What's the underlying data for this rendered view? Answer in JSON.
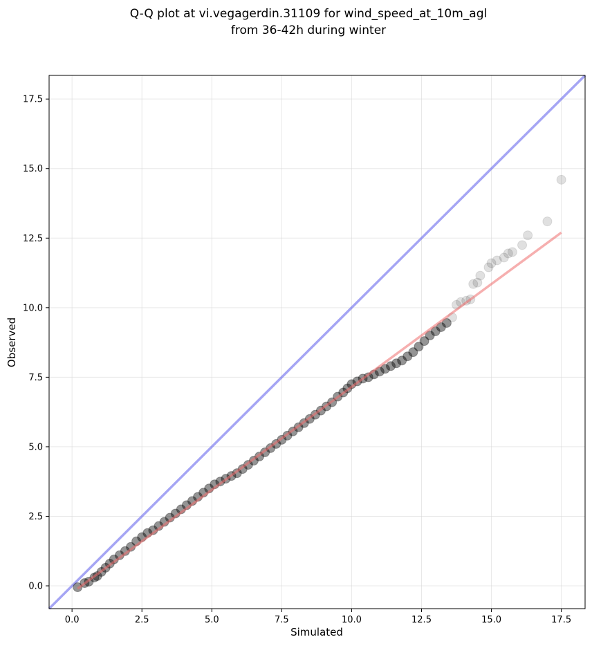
{
  "chart_data": {
    "type": "scatter",
    "title_lines": [
      "Q-Q plot at vi.vegagerdin.31109 for wind_speed_at_10m_agl",
      "from 36-42h during winter"
    ],
    "xlabel": "Simulated",
    "ylabel": "Observed",
    "xlim": [
      -0.82,
      18.35
    ],
    "ylim": [
      -0.82,
      18.35
    ],
    "xticks": [
      "0.0",
      "2.5",
      "5.0",
      "7.5",
      "10.0",
      "12.5",
      "15.0",
      "17.5"
    ],
    "yticks": [
      "0.0",
      "2.5",
      "5.0",
      "7.5",
      "10.0",
      "12.5",
      "15.0",
      "17.5"
    ],
    "grid": true,
    "colors": {
      "points": "#000000",
      "identity_line": "#6a6aee",
      "fit_line": "#ef6e6e",
      "grid": "#d9d9d9"
    },
    "identity_line": [
      [
        -0.82,
        -0.82
      ],
      [
        18.35,
        18.35
      ]
    ],
    "fit_line": [
      [
        0.2,
        -0.1
      ],
      [
        17.5,
        12.7
      ]
    ],
    "points": [
      [
        0.2,
        -0.05
      ],
      [
        0.45,
        0.1
      ],
      [
        0.6,
        0.15
      ],
      [
        0.8,
        0.3
      ],
      [
        0.9,
        0.35
      ],
      [
        1.05,
        0.5
      ],
      [
        1.2,
        0.65
      ],
      [
        1.35,
        0.8
      ],
      [
        1.5,
        0.95
      ],
      [
        1.7,
        1.1
      ],
      [
        1.9,
        1.25
      ],
      [
        2.1,
        1.4
      ],
      [
        2.3,
        1.6
      ],
      [
        2.5,
        1.75
      ],
      [
        2.7,
        1.9
      ],
      [
        2.9,
        2.0
      ],
      [
        3.1,
        2.15
      ],
      [
        3.3,
        2.3
      ],
      [
        3.5,
        2.45
      ],
      [
        3.7,
        2.6
      ],
      [
        3.9,
        2.75
      ],
      [
        4.1,
        2.9
      ],
      [
        4.3,
        3.05
      ],
      [
        4.5,
        3.2
      ],
      [
        4.7,
        3.35
      ],
      [
        4.9,
        3.5
      ],
      [
        5.1,
        3.65
      ],
      [
        5.3,
        3.75
      ],
      [
        5.5,
        3.85
      ],
      [
        5.7,
        3.95
      ],
      [
        5.9,
        4.05
      ],
      [
        6.1,
        4.2
      ],
      [
        6.3,
        4.35
      ],
      [
        6.5,
        4.5
      ],
      [
        6.7,
        4.65
      ],
      [
        6.9,
        4.8
      ],
      [
        7.1,
        4.95
      ],
      [
        7.3,
        5.1
      ],
      [
        7.5,
        5.25
      ],
      [
        7.7,
        5.4
      ],
      [
        7.9,
        5.55
      ],
      [
        8.1,
        5.7
      ],
      [
        8.3,
        5.85
      ],
      [
        8.5,
        6.0
      ],
      [
        8.7,
        6.15
      ],
      [
        8.9,
        6.3
      ],
      [
        9.1,
        6.45
      ],
      [
        9.3,
        6.6
      ],
      [
        9.5,
        6.8
      ],
      [
        9.7,
        6.95
      ],
      [
        9.85,
        7.1
      ],
      [
        10.0,
        7.25
      ],
      [
        10.2,
        7.35
      ],
      [
        10.4,
        7.45
      ],
      [
        10.6,
        7.5
      ],
      [
        10.8,
        7.6
      ],
      [
        11.0,
        7.7
      ],
      [
        11.2,
        7.8
      ],
      [
        11.4,
        7.9
      ],
      [
        11.6,
        8.0
      ],
      [
        11.8,
        8.1
      ],
      [
        12.0,
        8.25
      ],
      [
        12.2,
        8.4
      ],
      [
        12.4,
        8.6
      ],
      [
        12.6,
        8.8
      ],
      [
        12.8,
        9.0
      ],
      [
        13.0,
        9.15
      ],
      [
        13.2,
        9.3
      ],
      [
        13.4,
        9.45
      ],
      [
        13.6,
        9.65
      ],
      [
        13.75,
        10.1
      ],
      [
        13.9,
        10.2
      ],
      [
        14.1,
        10.25
      ],
      [
        14.25,
        10.3
      ],
      [
        14.35,
        10.85
      ],
      [
        14.5,
        10.9
      ],
      [
        14.6,
        11.15
      ],
      [
        14.9,
        11.45
      ],
      [
        15.0,
        11.6
      ],
      [
        15.2,
        11.7
      ],
      [
        15.45,
        11.8
      ],
      [
        15.6,
        11.95
      ],
      [
        15.75,
        12.0
      ],
      [
        16.1,
        12.25
      ],
      [
        16.3,
        12.6
      ],
      [
        17.0,
        13.1
      ],
      [
        17.5,
        14.6
      ]
    ]
  }
}
